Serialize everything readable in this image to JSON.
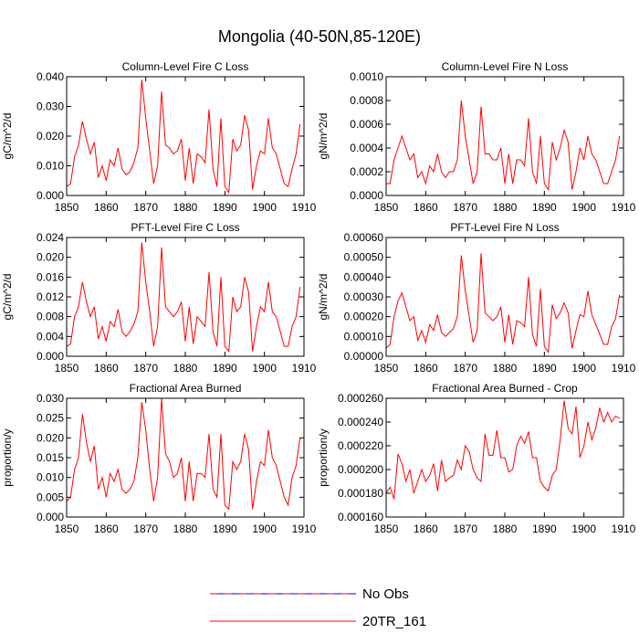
{
  "title": "Mongolia (40-50N,85-120E)",
  "legend": [
    {
      "name": "No Obs",
      "color": "#ff0000",
      "color2": "#0000ff",
      "dashed": true
    },
    {
      "name": "20TR_161",
      "color": "#ff0000",
      "dashed": false
    }
  ],
  "chart_data": [
    {
      "type": "line",
      "title": "Column-Level Fire C Loss",
      "y_label": "gC/m^2/d",
      "x": [
        1850,
        1851,
        1852,
        1853,
        1854,
        1855,
        1856,
        1857,
        1858,
        1859,
        1860,
        1861,
        1862,
        1863,
        1864,
        1865,
        1866,
        1867,
        1868,
        1869,
        1870,
        1871,
        1872,
        1873,
        1874,
        1875,
        1876,
        1877,
        1878,
        1879,
        1880,
        1881,
        1882,
        1883,
        1884,
        1885,
        1886,
        1887,
        1888,
        1889,
        1890,
        1891,
        1892,
        1893,
        1894,
        1895,
        1896,
        1897,
        1898,
        1899,
        1900,
        1901,
        1902,
        1903,
        1904,
        1905,
        1906,
        1907,
        1908,
        1909
      ],
      "series": [
        {
          "color": "#ff0000",
          "values": [
            0.003,
            0.004,
            0.013,
            0.017,
            0.025,
            0.019,
            0.014,
            0.018,
            0.006,
            0.01,
            0.005,
            0.012,
            0.01,
            0.016,
            0.009,
            0.007,
            0.008,
            0.011,
            0.016,
            0.039,
            0.026,
            0.015,
            0.004,
            0.01,
            0.035,
            0.017,
            0.016,
            0.014,
            0.015,
            0.019,
            0.005,
            0.016,
            0.004,
            0.014,
            0.013,
            0.011,
            0.029,
            0.009,
            0.003,
            0.026,
            0.003,
            0.001,
            0.019,
            0.015,
            0.017,
            0.027,
            0.022,
            0.002,
            0.01,
            0.015,
            0.014,
            0.026,
            0.016,
            0.014,
            0.009,
            0.004,
            0.003,
            0.009,
            0.014,
            0.024
          ]
        }
      ],
      "xlim": [
        1850,
        1910
      ],
      "xticks": [
        1850,
        1860,
        1870,
        1880,
        1890,
        1900,
        1910
      ],
      "ylim": [
        0,
        0.04
      ],
      "yticks": [
        {
          "value": 0,
          "label": "0.000"
        },
        {
          "value": 0.01,
          "label": "0.010"
        },
        {
          "value": 0.02,
          "label": "0.020"
        },
        {
          "value": 0.03,
          "label": "0.030"
        },
        {
          "value": 0.04,
          "label": "0.040"
        }
      ]
    },
    {
      "type": "line",
      "title": "Column-Level Fire N Loss",
      "y_label": "gN/m^2/d",
      "x": [
        1850,
        1851,
        1852,
        1853,
        1854,
        1855,
        1856,
        1857,
        1858,
        1859,
        1860,
        1861,
        1862,
        1863,
        1864,
        1865,
        1866,
        1867,
        1868,
        1869,
        1870,
        1871,
        1872,
        1873,
        1874,
        1875,
        1876,
        1877,
        1878,
        1879,
        1880,
        1881,
        1882,
        1883,
        1884,
        1885,
        1886,
        1887,
        1888,
        1889,
        1890,
        1891,
        1892,
        1893,
        1894,
        1895,
        1896,
        1897,
        1898,
        1899,
        1900,
        1901,
        1902,
        1903,
        1904,
        1905,
        1906,
        1907,
        1908,
        1909
      ],
      "series": [
        {
          "color": "#ff0000",
          "values": [
            0.0001,
            0.0001,
            0.0003,
            0.0004,
            0.0005,
            0.0004,
            0.0003,
            0.00035,
            0.00015,
            0.0002,
            0.0001,
            0.00025,
            0.0002,
            0.00035,
            0.0002,
            0.00015,
            0.0002,
            0.0002,
            0.0003,
            0.0008,
            0.0005,
            0.0003,
            0.0001,
            0.0002,
            0.00075,
            0.00035,
            0.00035,
            0.0003,
            0.0003,
            0.0004,
            0.0001,
            0.00035,
            0.0001,
            0.0003,
            0.0003,
            0.00025,
            0.00065,
            0.0002,
            0.0001,
            0.0005,
            0.0001,
            5e-05,
            0.00045,
            0.0003,
            0.0004,
            0.00055,
            0.00045,
            5e-05,
            0.0002,
            0.0004,
            0.0003,
            0.0005,
            0.00035,
            0.0003,
            0.0002,
            0.0001,
            0.0001,
            0.0002,
            0.0003,
            0.0005
          ]
        }
      ],
      "xlim": [
        1850,
        1910
      ],
      "xticks": [
        1850,
        1860,
        1870,
        1880,
        1890,
        1900,
        1910
      ],
      "ylim": [
        0,
        0.001
      ],
      "yticks": [
        {
          "value": 0,
          "label": "0.0000"
        },
        {
          "value": 0.0002,
          "label": "0.0002"
        },
        {
          "value": 0.0004,
          "label": "0.0004"
        },
        {
          "value": 0.0006,
          "label": "0.0006"
        },
        {
          "value": 0.0008,
          "label": "0.0008"
        },
        {
          "value": 0.001,
          "label": "0.0010"
        }
      ]
    },
    {
      "type": "line",
      "title": "PFT-Level Fire C Loss",
      "y_label": "gC/m^2/d",
      "x": [
        1850,
        1851,
        1852,
        1853,
        1854,
        1855,
        1856,
        1857,
        1858,
        1859,
        1860,
        1861,
        1862,
        1863,
        1864,
        1865,
        1866,
        1867,
        1868,
        1869,
        1870,
        1871,
        1872,
        1873,
        1874,
        1875,
        1876,
        1877,
        1878,
        1879,
        1880,
        1881,
        1882,
        1883,
        1884,
        1885,
        1886,
        1887,
        1888,
        1889,
        1890,
        1891,
        1892,
        1893,
        1894,
        1895,
        1896,
        1897,
        1898,
        1899,
        1900,
        1901,
        1902,
        1903,
        1904,
        1905,
        1906,
        1907,
        1908,
        1909
      ],
      "series": [
        {
          "color": "#ff0000",
          "values": [
            0.002,
            0.0025,
            0.008,
            0.01,
            0.015,
            0.011,
            0.008,
            0.01,
            0.0035,
            0.006,
            0.003,
            0.007,
            0.006,
            0.0095,
            0.005,
            0.004,
            0.005,
            0.0065,
            0.009,
            0.023,
            0.015,
            0.009,
            0.002,
            0.006,
            0.022,
            0.01,
            0.009,
            0.008,
            0.009,
            0.011,
            0.003,
            0.01,
            0.0025,
            0.008,
            0.007,
            0.006,
            0.017,
            0.005,
            0.002,
            0.016,
            0.002,
            0.001,
            0.012,
            0.009,
            0.01,
            0.016,
            0.013,
            0.001,
            0.006,
            0.01,
            0.009,
            0.015,
            0.009,
            0.008,
            0.005,
            0.002,
            0.002,
            0.006,
            0.008,
            0.014
          ]
        }
      ],
      "xlim": [
        1850,
        1910
      ],
      "xticks": [
        1850,
        1860,
        1870,
        1880,
        1890,
        1900,
        1910
      ],
      "ylim": [
        0,
        0.024
      ],
      "yticks": [
        {
          "value": 0,
          "label": "0.000"
        },
        {
          "value": 0.004,
          "label": "0.004"
        },
        {
          "value": 0.008,
          "label": "0.008"
        },
        {
          "value": 0.012,
          "label": "0.012"
        },
        {
          "value": 0.016,
          "label": "0.016"
        },
        {
          "value": 0.02,
          "label": "0.020"
        },
        {
          "value": 0.024,
          "label": "0.024"
        }
      ]
    },
    {
      "type": "line",
      "title": "PFT-Level Fire N Loss",
      "y_label": "gN/m^2/d",
      "x": [
        1850,
        1851,
        1852,
        1853,
        1854,
        1855,
        1856,
        1857,
        1858,
        1859,
        1860,
        1861,
        1862,
        1863,
        1864,
        1865,
        1866,
        1867,
        1868,
        1869,
        1870,
        1871,
        1872,
        1873,
        1874,
        1875,
        1876,
        1877,
        1878,
        1879,
        1880,
        1881,
        1882,
        1883,
        1884,
        1885,
        1886,
        1887,
        1888,
        1889,
        1890,
        1891,
        1892,
        1893,
        1894,
        1895,
        1896,
        1897,
        1898,
        1899,
        1900,
        1901,
        1902,
        1903,
        1904,
        1905,
        1906,
        1907,
        1908,
        1909
      ],
      "series": [
        {
          "color": "#ff0000",
          "values": [
            4e-05,
            6e-05,
            0.0002,
            0.00028,
            0.00032,
            0.00025,
            0.00018,
            0.0002,
            8e-05,
            0.00013,
            7e-05,
            0.00016,
            0.00013,
            0.00021,
            0.00012,
            0.0001,
            0.00012,
            0.00014,
            0.0002,
            0.00051,
            0.00033,
            0.0002,
            7e-05,
            0.00013,
            0.00052,
            0.00022,
            0.0002,
            0.00018,
            0.0002,
            0.00025,
            7e-05,
            0.00021,
            6e-05,
            0.00018,
            0.00017,
            0.00015,
            0.0004,
            0.00011,
            5e-05,
            0.00034,
            5e-05,
            2e-05,
            0.00026,
            0.00019,
            0.00022,
            0.00027,
            0.00022,
            4e-05,
            0.00013,
            0.00021,
            0.0002,
            0.00033,
            0.00021,
            0.00016,
            0.00011,
            6e-05,
            6e-05,
            0.00015,
            0.00019,
            0.00031
          ]
        }
      ],
      "xlim": [
        1850,
        1910
      ],
      "xticks": [
        1850,
        1860,
        1870,
        1880,
        1890,
        1900,
        1910
      ],
      "ylim": [
        0,
        0.0006
      ],
      "yticks": [
        {
          "value": 0,
          "label": "0.00000"
        },
        {
          "value": 0.0001,
          "label": "0.00010"
        },
        {
          "value": 0.0002,
          "label": "0.00020"
        },
        {
          "value": 0.0003,
          "label": "0.00030"
        },
        {
          "value": 0.0004,
          "label": "0.00040"
        },
        {
          "value": 0.0005,
          "label": "0.00050"
        },
        {
          "value": 0.0006,
          "label": "0.00060"
        }
      ]
    },
    {
      "type": "line",
      "title": "Fractional Area Burned",
      "y_label": "proportion/y",
      "x": [
        1850,
        1851,
        1852,
        1853,
        1854,
        1855,
        1856,
        1857,
        1858,
        1859,
        1860,
        1861,
        1862,
        1863,
        1864,
        1865,
        1866,
        1867,
        1868,
        1869,
        1870,
        1871,
        1872,
        1873,
        1874,
        1875,
        1876,
        1877,
        1878,
        1879,
        1880,
        1881,
        1882,
        1883,
        1884,
        1885,
        1886,
        1887,
        1888,
        1889,
        1890,
        1891,
        1892,
        1893,
        1894,
        1895,
        1896,
        1897,
        1898,
        1899,
        1900,
        1901,
        1902,
        1903,
        1904,
        1905,
        1906,
        1907,
        1908,
        1909
      ],
      "series": [
        {
          "color": "#ff0000",
          "values": [
            0.004,
            0.005,
            0.012,
            0.015,
            0.026,
            0.019,
            0.014,
            0.018,
            0.007,
            0.01,
            0.005,
            0.011,
            0.009,
            0.012,
            0.007,
            0.006,
            0.007,
            0.009,
            0.015,
            0.029,
            0.022,
            0.012,
            0.004,
            0.01,
            0.03,
            0.016,
            0.014,
            0.01,
            0.011,
            0.015,
            0.004,
            0.014,
            0.004,
            0.011,
            0.011,
            0.01,
            0.021,
            0.007,
            0.005,
            0.021,
            0.003,
            0.002,
            0.014,
            0.012,
            0.014,
            0.021,
            0.017,
            0.002,
            0.009,
            0.014,
            0.013,
            0.022,
            0.015,
            0.013,
            0.009,
            0.005,
            0.003,
            0.01,
            0.013,
            0.02
          ]
        }
      ],
      "xlim": [
        1850,
        1910
      ],
      "xticks": [
        1850,
        1860,
        1870,
        1880,
        1890,
        1900,
        1910
      ],
      "ylim": [
        0,
        0.03
      ],
      "yticks": [
        {
          "value": 0,
          "label": "0.000"
        },
        {
          "value": 0.005,
          "label": "0.005"
        },
        {
          "value": 0.01,
          "label": "0.010"
        },
        {
          "value": 0.015,
          "label": "0.015"
        },
        {
          "value": 0.02,
          "label": "0.020"
        },
        {
          "value": 0.025,
          "label": "0.025"
        },
        {
          "value": 0.03,
          "label": "0.030"
        }
      ]
    },
    {
      "type": "line",
      "title": "Fractional Area Burned - Crop",
      "y_label": "proportion/y",
      "x": [
        1850,
        1851,
        1852,
        1853,
        1854,
        1855,
        1856,
        1857,
        1858,
        1859,
        1860,
        1861,
        1862,
        1863,
        1864,
        1865,
        1866,
        1867,
        1868,
        1869,
        1870,
        1871,
        1872,
        1873,
        1874,
        1875,
        1876,
        1877,
        1878,
        1879,
        1880,
        1881,
        1882,
        1883,
        1884,
        1885,
        1886,
        1887,
        1888,
        1889,
        1890,
        1891,
        1892,
        1893,
        1894,
        1895,
        1896,
        1897,
        1898,
        1899,
        1900,
        1901,
        1902,
        1903,
        1904,
        1905,
        1906,
        1907,
        1908,
        1909
      ],
      "series": [
        {
          "color": "#ff0000",
          "values": [
            0.00018,
            0.000185,
            0.000175,
            0.000213,
            0.000205,
            0.00019,
            0.0002,
            0.00018,
            0.00019,
            0.0002,
            0.00019,
            0.000195,
            0.000205,
            0.000182,
            0.000208,
            0.00019,
            0.000193,
            0.000195,
            0.000208,
            0.0002,
            0.00022,
            0.000215,
            0.0002,
            0.000193,
            0.00019,
            0.00023,
            0.000212,
            0.000212,
            0.000233,
            0.00021,
            0.00021,
            0.000198,
            0.0002,
            0.00022,
            0.000228,
            0.000222,
            0.000232,
            0.00021,
            0.00021,
            0.00019,
            0.000185,
            0.000182,
            0.000195,
            0.0002,
            0.000225,
            0.000258,
            0.000235,
            0.00023,
            0.000253,
            0.00021,
            0.00022,
            0.00024,
            0.000225,
            0.000235,
            0.000252,
            0.00024,
            0.000248,
            0.00024,
            0.000245,
            0.000243
          ]
        }
      ],
      "xlim": [
        1850,
        1910
      ],
      "xticks": [
        1850,
        1860,
        1870,
        1880,
        1890,
        1900,
        1910
      ],
      "ylim": [
        0.00016,
        0.00026
      ],
      "yticks": [
        {
          "value": 0.00016,
          "label": "0.000160"
        },
        {
          "value": 0.00018,
          "label": "0.000180"
        },
        {
          "value": 0.0002,
          "label": "0.000200"
        },
        {
          "value": 0.00022,
          "label": "0.000220"
        },
        {
          "value": 0.00024,
          "label": "0.000240"
        },
        {
          "value": 0.00026,
          "label": "0.000260"
        }
      ]
    }
  ]
}
